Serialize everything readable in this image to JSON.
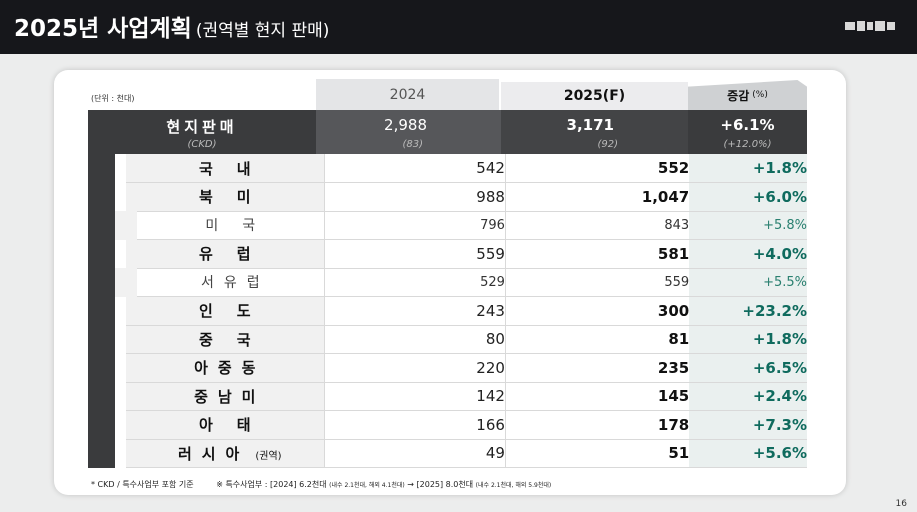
{
  "header": {
    "title": "2025년 사업계획",
    "subtitle": "(권역별 현지 판매)"
  },
  "unit_label": "(단위 : 천대)",
  "columns": {
    "y2024": "2024",
    "y2025": "2025(F)",
    "increase": "증감",
    "increase_unit": "(%)"
  },
  "total": {
    "label": "현지판매",
    "sub_label": "(CKD)",
    "v2024": "2,988",
    "v2024_sub": "(83)",
    "v2025": "3,171",
    "v2025_sub": "(92)",
    "inc": "+6.1%",
    "inc_sub": "(+12.0%)"
  },
  "rows": [
    {
      "label": "국내",
      "v2024": "542",
      "v2025": "552",
      "inc": "+1.8%"
    },
    {
      "label": "북미",
      "v2024": "988",
      "v2025": "1,047",
      "inc": "+6.0%"
    },
    {
      "label": "미국",
      "v2024": "796",
      "v2025": "843",
      "inc": "+5.8%"
    },
    {
      "label": "유럽",
      "v2024": "559",
      "v2025": "581",
      "inc": "+4.0%"
    },
    {
      "label": "서유럽",
      "v2024": "529",
      "v2025": "559",
      "inc": "+5.5%"
    },
    {
      "label": "인도",
      "v2024": "243",
      "v2025": "300",
      "inc": "+23.2%"
    },
    {
      "label": "중국",
      "v2024": "80",
      "v2025": "81",
      "inc": "+1.8%"
    },
    {
      "label": "아중동",
      "v2024": "220",
      "v2025": "235",
      "inc": "+6.5%"
    },
    {
      "label": "중남미",
      "v2024": "142",
      "v2025": "145",
      "inc": "+2.4%"
    },
    {
      "label": "아태",
      "v2024": "166",
      "v2025": "178",
      "inc": "+7.3%"
    },
    {
      "label": "러시아",
      "label_note": "(권역)",
      "v2024": "49",
      "v2025": "51",
      "inc": "+5.6%"
    }
  ],
  "footnote": {
    "note1": "* CKD / 특수사업부 포함 기준",
    "note2_a": "※ 특수사업부 : [2024] 6.2천대",
    "note2_b": "(내수 2.1천대, 해외 4.1천대)",
    "note2_c": "→ [2025] 8.0천대",
    "note2_d": "(내수 2.1천대, 해외 5.9천대)"
  },
  "page_number": "16",
  "colors": {
    "topbar": "#16171b",
    "increase_text": "#0f6b5e",
    "total_row": "#3a3b3d"
  }
}
